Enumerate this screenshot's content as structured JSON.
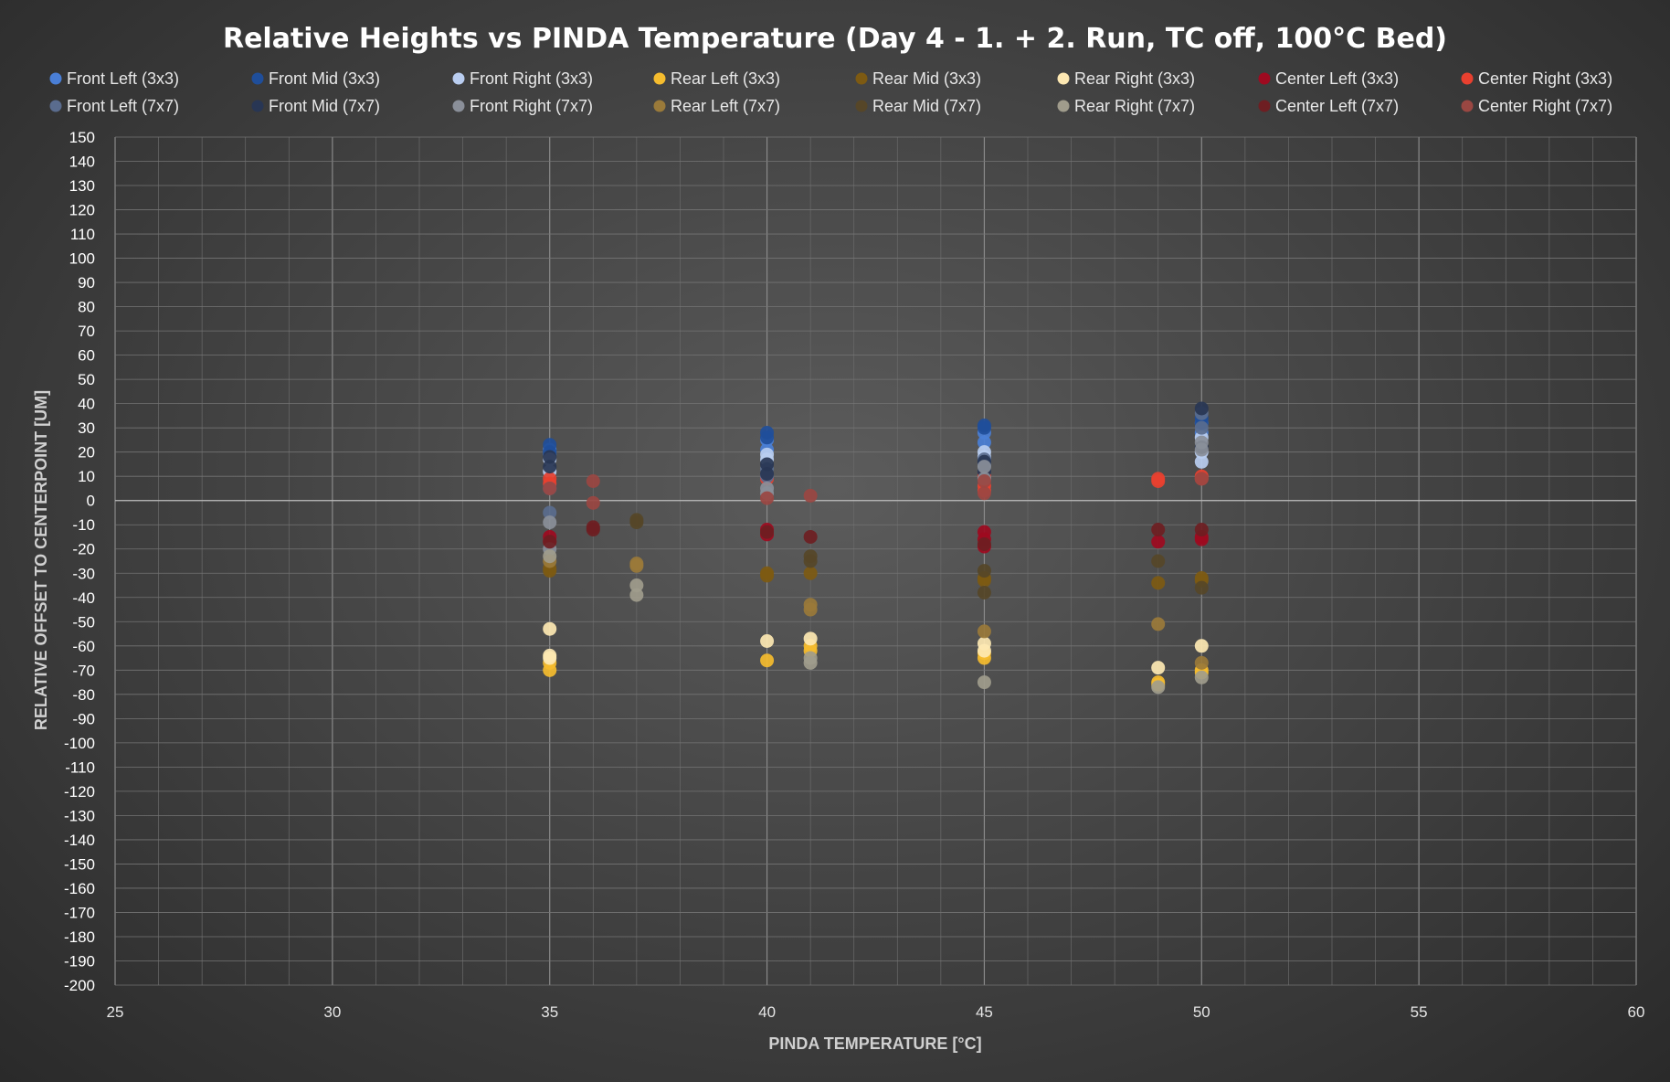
{
  "chart_data": {
    "type": "scatter",
    "title": "Relative Heights vs PINDA Temperature (Day 4 - 1. + 2. Run, TC off, 100°C Bed)",
    "xlabel": "PINDA TEMPERATURE [°C]",
    "ylabel": "RELATIVE OFFSET TO CENTERPOINT [UM]",
    "xlim": [
      25,
      60
    ],
    "ylim": [
      -200,
      150
    ],
    "x_ticks": [
      25,
      30,
      35,
      40,
      45,
      50,
      55,
      60
    ],
    "y_ticks": [
      150,
      140,
      130,
      120,
      110,
      100,
      90,
      80,
      70,
      60,
      50,
      40,
      30,
      20,
      10,
      0,
      -10,
      -20,
      -30,
      -40,
      -50,
      -60,
      -70,
      -80,
      -90,
      -100,
      -110,
      -120,
      -130,
      -140,
      -150,
      -160,
      -170,
      -180,
      -190,
      -200
    ],
    "grid": true,
    "legend_position": "top",
    "series": [
      {
        "name": "Front Left (3x3)",
        "color": "#4a7fd6",
        "points": [
          [
            35,
            21
          ],
          [
            35,
            19
          ],
          [
            40,
            25
          ],
          [
            40,
            21
          ],
          [
            45,
            28
          ],
          [
            45,
            24
          ],
          [
            50,
            32
          ],
          [
            50,
            28
          ]
        ]
      },
      {
        "name": "Front Mid (3x3)",
        "color": "#1f4e9a",
        "points": [
          [
            35,
            23
          ],
          [
            35,
            20
          ],
          [
            40,
            28
          ],
          [
            40,
            26
          ],
          [
            45,
            31
          ],
          [
            45,
            30
          ],
          [
            50,
            34
          ],
          [
            50,
            32
          ]
        ]
      },
      {
        "name": "Front Right (3x3)",
        "color": "#b9cdf0",
        "points": [
          [
            35,
            17
          ],
          [
            35,
            12
          ],
          [
            40,
            19
          ],
          [
            40,
            17
          ],
          [
            45,
            20
          ],
          [
            45,
            18
          ],
          [
            50,
            20
          ],
          [
            50,
            16
          ],
          [
            50,
            26
          ]
        ]
      },
      {
        "name": "Rear Left (3x3)",
        "color": "#f5bc2e",
        "points": [
          [
            35,
            -70
          ],
          [
            35,
            -67
          ],
          [
            40,
            -66
          ],
          [
            41,
            -62
          ],
          [
            41,
            -60
          ],
          [
            45,
            -65
          ],
          [
            45,
            -63
          ],
          [
            49,
            -76
          ],
          [
            49,
            -75
          ],
          [
            50,
            -71
          ],
          [
            50,
            -70
          ]
        ]
      },
      {
        "name": "Rear Mid (3x3)",
        "color": "#7d5a12",
        "points": [
          [
            35,
            -29
          ],
          [
            35,
            -28
          ],
          [
            40,
            -31
          ],
          [
            40,
            -30
          ],
          [
            41,
            -30
          ],
          [
            45,
            -33
          ],
          [
            45,
            -32
          ],
          [
            49,
            -34
          ],
          [
            50,
            -33
          ],
          [
            50,
            -32
          ]
        ]
      },
      {
        "name": "Rear Right (3x3)",
        "color": "#fde8b2",
        "points": [
          [
            35,
            -53
          ],
          [
            35,
            -65
          ],
          [
            35,
            -64
          ],
          [
            40,
            -58
          ],
          [
            41,
            -57
          ],
          [
            45,
            -59
          ],
          [
            45,
            -62
          ],
          [
            49,
            -69
          ],
          [
            50,
            -60
          ]
        ]
      },
      {
        "name": "Center Left (3x3)",
        "color": "#9e0a20",
        "points": [
          [
            35,
            -15
          ],
          [
            35,
            -17
          ],
          [
            40,
            -12
          ],
          [
            40,
            -14
          ],
          [
            45,
            -13
          ],
          [
            45,
            -16
          ],
          [
            45,
            -19
          ],
          [
            49,
            -17
          ],
          [
            50,
            -16
          ],
          [
            50,
            -15
          ]
        ]
      },
      {
        "name": "Center Right (3x3)",
        "color": "#e8402f",
        "points": [
          [
            35,
            7
          ],
          [
            35,
            9
          ],
          [
            40,
            9
          ],
          [
            45,
            6
          ],
          [
            45,
            10
          ],
          [
            45,
            4
          ],
          [
            49,
            9
          ],
          [
            49,
            8
          ],
          [
            50,
            10
          ],
          [
            50,
            9
          ]
        ]
      },
      {
        "name": "Front Left (7x7)",
        "color": "#5a6c8e",
        "points": [
          [
            35,
            -5
          ],
          [
            35,
            5
          ],
          [
            40,
            10
          ],
          [
            40,
            13
          ],
          [
            45,
            15
          ],
          [
            45,
            17
          ],
          [
            50,
            36
          ],
          [
            50,
            30
          ]
        ]
      },
      {
        "name": "Front Mid (7x7)",
        "color": "#283654",
        "points": [
          [
            35,
            14
          ],
          [
            35,
            18
          ],
          [
            40,
            11
          ],
          [
            40,
            15
          ],
          [
            45,
            12
          ],
          [
            45,
            16
          ],
          [
            50,
            38
          ],
          [
            50,
            22
          ]
        ]
      },
      {
        "name": "Front Right (7x7)",
        "color": "#8a8f99",
        "points": [
          [
            35,
            -9
          ],
          [
            35,
            -20
          ],
          [
            40,
            3
          ],
          [
            40,
            5
          ],
          [
            45,
            14
          ],
          [
            45,
            9
          ],
          [
            50,
            21
          ],
          [
            50,
            24
          ]
        ]
      },
      {
        "name": "Rear Left (7x7)",
        "color": "#9a7a3a",
        "points": [
          [
            35,
            -25
          ],
          [
            37,
            -27
          ],
          [
            37,
            -26
          ],
          [
            41,
            -45
          ],
          [
            41,
            -43
          ],
          [
            45,
            -54
          ],
          [
            49,
            -51
          ],
          [
            50,
            -67
          ]
        ]
      },
      {
        "name": "Rear Mid (7x7)",
        "color": "#564628",
        "points": [
          [
            37,
            -9
          ],
          [
            37,
            -8
          ],
          [
            41,
            -23
          ],
          [
            41,
            -25
          ],
          [
            45,
            -38
          ],
          [
            45,
            -29
          ],
          [
            49,
            -25
          ],
          [
            50,
            -36
          ]
        ]
      },
      {
        "name": "Rear Right (7x7)",
        "color": "#a09c8c",
        "points": [
          [
            35,
            -23
          ],
          [
            37,
            -35
          ],
          [
            37,
            -39
          ],
          [
            41,
            -67
          ],
          [
            41,
            -65
          ],
          [
            45,
            -75
          ],
          [
            49,
            -77
          ],
          [
            50,
            -73
          ]
        ]
      },
      {
        "name": "Center Left (7x7)",
        "color": "#6e1e22",
        "points": [
          [
            35,
            -17
          ],
          [
            36,
            -12
          ],
          [
            36,
            -11
          ],
          [
            40,
            -13
          ],
          [
            41,
            -15
          ],
          [
            45,
            -18
          ],
          [
            49,
            -12
          ],
          [
            50,
            -12
          ]
        ]
      },
      {
        "name": "Center Right (7x7)",
        "color": "#9a4742",
        "points": [
          [
            35,
            5
          ],
          [
            36,
            8
          ],
          [
            36,
            -1
          ],
          [
            40,
            1
          ],
          [
            41,
            2
          ],
          [
            45,
            3
          ],
          [
            45,
            8
          ],
          [
            50,
            9
          ]
        ]
      }
    ]
  }
}
